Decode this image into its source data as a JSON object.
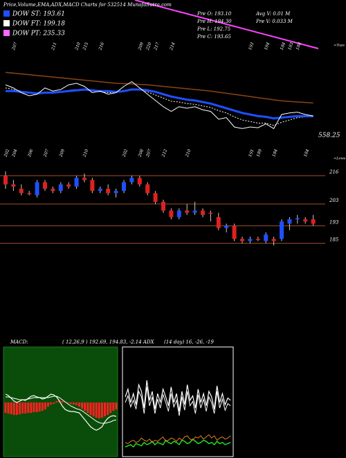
{
  "header": {
    "title": "Price,Volume,EMA,ADX,MACD Charts for 532514  MunafaSutra.com",
    "dow": [
      {
        "label": "DOW ST: 193.61",
        "color": "#1e50ff"
      },
      {
        "label": "DOW FT: 199.18",
        "color": "#ffffff"
      },
      {
        "label": "DOW PT: 235.33",
        "color": "#ff66ff"
      }
    ],
    "info_left": [
      "Pre  O: 193.10",
      "Pre  H: 194.30",
      "Pre  L: 192.75",
      "Pre  C: 193.65"
    ],
    "info_right": [
      "Avg  V: 0.01 M",
      "Pre  V: 0.033 M"
    ],
    "tops_label": "<Tops",
    "lows_label": "<Lows",
    "volume_label": "558.25",
    "macd_header": [
      "MACD:",
      "( 12,26,9 ) 192.69,  194.83, -2.14 ADX",
      "(14  day) 16,  -26,  -19"
    ]
  },
  "chart_data": [
    {
      "type": "line",
      "ylim": [
        175,
        235
      ],
      "series": [
        {
          "color": "#8b4513",
          "width": 1.5,
          "dash": false,
          "values": [
            222,
            221.5,
            221,
            220.5,
            220,
            219.5,
            219,
            218.5,
            218,
            217.5,
            217,
            216.5,
            216,
            215.5,
            215,
            214.8,
            214.6,
            214.3,
            214,
            213.5,
            213,
            212.5,
            212,
            211.5,
            211,
            210.5,
            210,
            209.3,
            208.6,
            207.9,
            207.2,
            206.5,
            205.8,
            205.1,
            204.4,
            203.8,
            203.4,
            203,
            202.7,
            202.4
          ]
        },
        {
          "color": "#ffffff",
          "width": 1,
          "dash": true,
          "values": [
            212,
            211,
            210,
            209,
            208.5,
            209,
            209,
            209.5,
            210.5,
            211,
            211,
            210,
            209.5,
            209,
            209,
            210,
            211.5,
            211,
            209.5,
            207.5,
            205.5,
            203.5,
            203,
            202,
            201.5,
            200.5,
            199.5,
            197.5,
            196,
            193.5,
            191.5,
            190.5,
            189.5,
            189.5,
            188,
            190,
            191.5,
            193,
            193.5,
            193.5
          ]
        },
        {
          "color": "#1e50ff",
          "width": 3,
          "dash": false,
          "values": [
            210,
            210,
            209.5,
            209,
            208.5,
            209,
            209,
            209.5,
            210,
            210.5,
            211,
            210.5,
            210,
            210,
            209.5,
            210,
            211,
            211,
            210.5,
            209.5,
            208,
            206.5,
            205.5,
            204.5,
            204,
            203,
            202,
            200.5,
            199,
            197.5,
            196,
            195,
            194,
            193.5,
            192.5,
            193,
            193.5,
            194,
            194,
            194
          ]
        },
        {
          "color": "#ffffff",
          "width": 1,
          "dash": false,
          "values": [
            214,
            212,
            209,
            207,
            208,
            212,
            210,
            211,
            214,
            215,
            213,
            209,
            210,
            208,
            209,
            213,
            216,
            212,
            208,
            204,
            200,
            197,
            200,
            199,
            200,
            198,
            197,
            192,
            193,
            187,
            186,
            187,
            186.5,
            189,
            186,
            195,
            196,
            196.5,
            195,
            194
          ]
        }
      ],
      "top_labels": [
        null,
        207,
        null,
        null,
        null,
        null,
        211,
        null,
        null,
        210,
        215,
        null,
        216,
        null,
        null,
        null,
        null,
        209,
        220,
        217,
        null,
        214,
        null,
        null,
        null,
        null,
        null,
        null,
        null,
        null,
        null,
        193,
        null,
        194,
        null,
        184,
        183,
        188,
        null,
        null
      ]
    },
    {
      "type": "candlestick",
      "ylim": [
        182,
        224
      ],
      "yticks": [
        216,
        203,
        193,
        185
      ],
      "up_color": "#1e50ff",
      "down_color": "#e02020",
      "level_color": "#a0522d",
      "open": [
        216,
        212,
        210,
        208,
        207,
        213,
        210,
        209,
        212,
        211,
        215,
        214,
        209,
        210,
        208,
        209,
        213,
        215,
        212,
        208,
        204,
        200,
        197,
        200,
        199,
        200,
        199,
        197,
        192,
        193,
        187,
        186,
        187,
        186,
        187,
        187,
        194,
        196,
        196,
        196
      ],
      "high": [
        218,
        214,
        212,
        209,
        214,
        214,
        211,
        213,
        213,
        216,
        217,
        215,
        211,
        212,
        210,
        214,
        216,
        216,
        213,
        209,
        205,
        201,
        201,
        203,
        204,
        201,
        200,
        199,
        194,
        194,
        188,
        188,
        188,
        190,
        188,
        196,
        197,
        198,
        197,
        198
      ],
      "low": [
        210,
        209,
        207,
        207,
        206,
        209,
        208,
        208,
        210,
        210,
        213,
        208,
        208,
        207,
        206,
        208,
        212,
        211,
        207,
        203,
        199,
        196,
        196,
        198,
        198,
        197,
        195,
        191,
        190,
        186,
        185,
        185,
        186,
        185,
        184,
        186,
        191,
        194,
        194,
        193
      ],
      "close": [
        212,
        211,
        208,
        207.5,
        213,
        210,
        209,
        212,
        211,
        215,
        214,
        209,
        210,
        208,
        209,
        213,
        215,
        212,
        208,
        204,
        200,
        197,
        200,
        199,
        200,
        198,
        198.5,
        192,
        193,
        187,
        186,
        187,
        186.5,
        189,
        186,
        195,
        196,
        196.5,
        195,
        194
      ],
      "low_labels": [
        202,
        204,
        null,
        206,
        null,
        207,
        null,
        209,
        null,
        null,
        210,
        null,
        null,
        null,
        null,
        202,
        null,
        208,
        207,
        null,
        212,
        null,
        null,
        210,
        null,
        null,
        null,
        null,
        null,
        null,
        null,
        191,
        189,
        null,
        184,
        null,
        null,
        null,
        184,
        null
      ]
    },
    {
      "type": "macd",
      "ylim": [
        -8,
        8
      ],
      "bar_color": "#ff2020",
      "line_color": "#ffffff",
      "histogram": [
        -1.5,
        -1.6,
        -1.7,
        -1.8,
        -1.8,
        -1.7,
        -1.6,
        -1.6,
        -1.5,
        -1.5,
        -1.4,
        -1.4,
        -1.3,
        -1.2,
        -1,
        -0.6,
        -0.3,
        -0.2,
        0.2,
        0.3,
        0.2,
        0.1,
        -0.1,
        -0.2,
        -0.3,
        -0.4,
        -0.6,
        -0.9,
        -1.2,
        -1.5,
        -1.8,
        -2,
        -2.2,
        -2.3,
        -2.2,
        -2,
        -1.8,
        -1.5,
        -1.2,
        -1
      ],
      "macd": [
        1.2,
        1,
        0.6,
        0.2,
        0,
        0.2,
        0.4,
        0.3,
        0.6,
        0.9,
        1,
        0.8,
        0.7,
        0.5,
        0.6,
        0.9,
        1.2,
        1.1,
        0.8,
        0.2,
        -0.5,
        -1,
        -1.2,
        -1.3,
        -1.3,
        -1.4,
        -1.5,
        -2,
        -2.5,
        -3,
        -3.5,
        -3.8,
        -4,
        -3.8,
        -3.5,
        -2.8,
        -2.3,
        -2,
        -1.9,
        -2
      ],
      "signal": [
        0.8,
        0.8,
        0.7,
        0.6,
        0.5,
        0.4,
        0.4,
        0.4,
        0.5,
        0.6,
        0.7,
        0.7,
        0.7,
        0.7,
        0.7,
        0.7,
        0.8,
        0.9,
        0.9,
        0.7,
        0.4,
        0.1,
        -0.2,
        -0.5,
        -0.7,
        -0.9,
        -1,
        -1.2,
        -1.5,
        -1.8,
        -2.1,
        -2.4,
        -2.7,
        -2.9,
        -3,
        -3,
        -2.9,
        -2.8,
        -2.6,
        -2.5
      ]
    },
    {
      "type": "adx",
      "ylim": [
        0,
        100
      ],
      "series": [
        {
          "color": "#ffffff",
          "width": 1.2,
          "values": [
            55,
            62,
            50,
            58,
            48,
            66,
            60,
            45,
            70,
            52,
            60,
            44,
            58,
            50,
            62,
            55,
            47,
            64,
            50,
            58,
            42,
            60,
            48,
            66,
            52,
            56,
            45,
            62,
            50,
            58,
            47,
            60,
            55,
            44,
            65,
            50,
            58,
            48,
            54,
            52
          ]
        },
        {
          "color": "#ffffff",
          "width": 1,
          "values": [
            50,
            56,
            46,
            52,
            44,
            60,
            55,
            40,
            64,
            47,
            55,
            40,
            53,
            45,
            57,
            50,
            42,
            58,
            46,
            52,
            38,
            55,
            43,
            60,
            47,
            51,
            40,
            57,
            45,
            53,
            42,
            55,
            50,
            40,
            60,
            45,
            53,
            43,
            49,
            47
          ]
        },
        {
          "color": "#22dd22",
          "width": 1.5,
          "values": [
            10,
            11,
            12,
            10,
            13,
            12,
            11,
            14,
            12,
            13,
            15,
            12,
            14,
            13,
            12,
            16,
            14,
            13,
            15,
            14,
            12,
            16,
            15,
            13,
            14,
            17,
            15,
            13,
            14,
            16,
            15,
            13,
            14,
            12,
            15,
            13,
            14,
            12,
            13,
            14
          ]
        },
        {
          "color": "#e08020",
          "width": 1,
          "values": [
            14,
            13,
            15,
            16,
            14,
            15,
            18,
            16,
            15,
            17,
            14,
            16,
            15,
            17,
            19,
            15,
            16,
            18,
            17,
            15,
            18,
            16,
            19,
            20,
            17,
            16,
            19,
            18,
            20,
            17,
            19,
            21,
            18,
            20,
            16,
            18,
            19,
            17,
            18,
            20
          ]
        }
      ]
    }
  ]
}
